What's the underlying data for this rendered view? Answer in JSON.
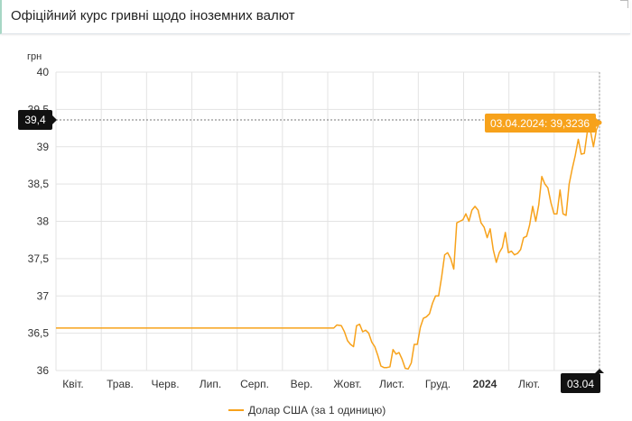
{
  "header": {
    "title": "Офіційний курс гривні щодо іноземних валют"
  },
  "colors": {
    "series": "#f7a21b",
    "crosshair_label_bg": "#111111",
    "grid": "#e3e3e3"
  },
  "chart_data": {
    "type": "line",
    "title": "",
    "ylabel": "грн",
    "ylim": [
      36,
      40
    ],
    "yticks": [
      "40",
      "39,5",
      "39",
      "38,5",
      "38",
      "37,5",
      "37",
      "36,5",
      "36"
    ],
    "xticks": [
      "Квіт.",
      "Трав.",
      "Черв.",
      "Лип.",
      "Серп.",
      "Вер.",
      "Жовт.",
      "Лист.",
      "Груд.",
      "2024",
      "Лют.",
      "03.04"
    ],
    "xticks_bold": [
      "2024"
    ],
    "crosshair": {
      "y_label": "39,4",
      "x_label": "03.04"
    },
    "tooltip": {
      "text": "03.04.2024: 39,3236"
    },
    "legend": {
      "position": "bottom",
      "label": "Долар США (за 1 одиницю)"
    },
    "series": [
      {
        "name": "Долар США (за 1 одиницю)",
        "points": [
          [
            0,
            36.5686
          ],
          [
            183,
            36.5686
          ],
          [
            185,
            36.61
          ],
          [
            188,
            36.6
          ],
          [
            190,
            36.52
          ],
          [
            192,
            36.4
          ],
          [
            194,
            36.35
          ],
          [
            196,
            36.32
          ],
          [
            198,
            36.6
          ],
          [
            200,
            36.62
          ],
          [
            202,
            36.52
          ],
          [
            204,
            36.54
          ],
          [
            206,
            36.5
          ],
          [
            208,
            36.38
          ],
          [
            210,
            36.32
          ],
          [
            212,
            36.2
          ],
          [
            214,
            36.06
          ],
          [
            216,
            36.04
          ],
          [
            218,
            36.04
          ],
          [
            220,
            36.05
          ],
          [
            222,
            36.28
          ],
          [
            224,
            36.22
          ],
          [
            226,
            36.24
          ],
          [
            228,
            36.15
          ],
          [
            230,
            36.03
          ],
          [
            232,
            36.02
          ],
          [
            234,
            36.1
          ],
          [
            236,
            36.35
          ],
          [
            238,
            36.35
          ],
          [
            240,
            36.58
          ],
          [
            242,
            36.7
          ],
          [
            244,
            36.72
          ],
          [
            246,
            36.76
          ],
          [
            248,
            36.9
          ],
          [
            250,
            37.0
          ],
          [
            252,
            37.0
          ],
          [
            254,
            37.25
          ],
          [
            256,
            37.55
          ],
          [
            258,
            37.58
          ],
          [
            260,
            37.5
          ],
          [
            262,
            37.36
          ],
          [
            264,
            37.98
          ],
          [
            266,
            38.0
          ],
          [
            268,
            38.02
          ],
          [
            270,
            38.1
          ],
          [
            272,
            38.0
          ],
          [
            274,
            38.15
          ],
          [
            276,
            38.2
          ],
          [
            278,
            38.15
          ],
          [
            280,
            37.98
          ],
          [
            282,
            37.92
          ],
          [
            284,
            37.78
          ],
          [
            286,
            37.9
          ],
          [
            288,
            37.62
          ],
          [
            290,
            37.45
          ],
          [
            292,
            37.58
          ],
          [
            294,
            37.65
          ],
          [
            296,
            37.85
          ],
          [
            298,
            37.58
          ],
          [
            300,
            37.6
          ],
          [
            302,
            37.55
          ],
          [
            304,
            37.57
          ],
          [
            306,
            37.62
          ],
          [
            308,
            37.78
          ],
          [
            310,
            37.8
          ],
          [
            312,
            37.95
          ],
          [
            314,
            38.2
          ],
          [
            316,
            38.0
          ],
          [
            318,
            38.22
          ],
          [
            320,
            38.6
          ],
          [
            322,
            38.5
          ],
          [
            324,
            38.45
          ],
          [
            326,
            38.25
          ],
          [
            328,
            38.1
          ],
          [
            330,
            38.1
          ],
          [
            332,
            38.42
          ],
          [
            334,
            38.1
          ],
          [
            336,
            38.08
          ],
          [
            338,
            38.5
          ],
          [
            340,
            38.7
          ],
          [
            342,
            38.88
          ],
          [
            344,
            39.1
          ],
          [
            346,
            38.9
          ],
          [
            348,
            38.91
          ],
          [
            350,
            39.2
          ],
          [
            352,
            39.22
          ],
          [
            354,
            39.0
          ],
          [
            356,
            39.2286
          ],
          [
            358,
            39.3236
          ]
        ]
      }
    ]
  }
}
